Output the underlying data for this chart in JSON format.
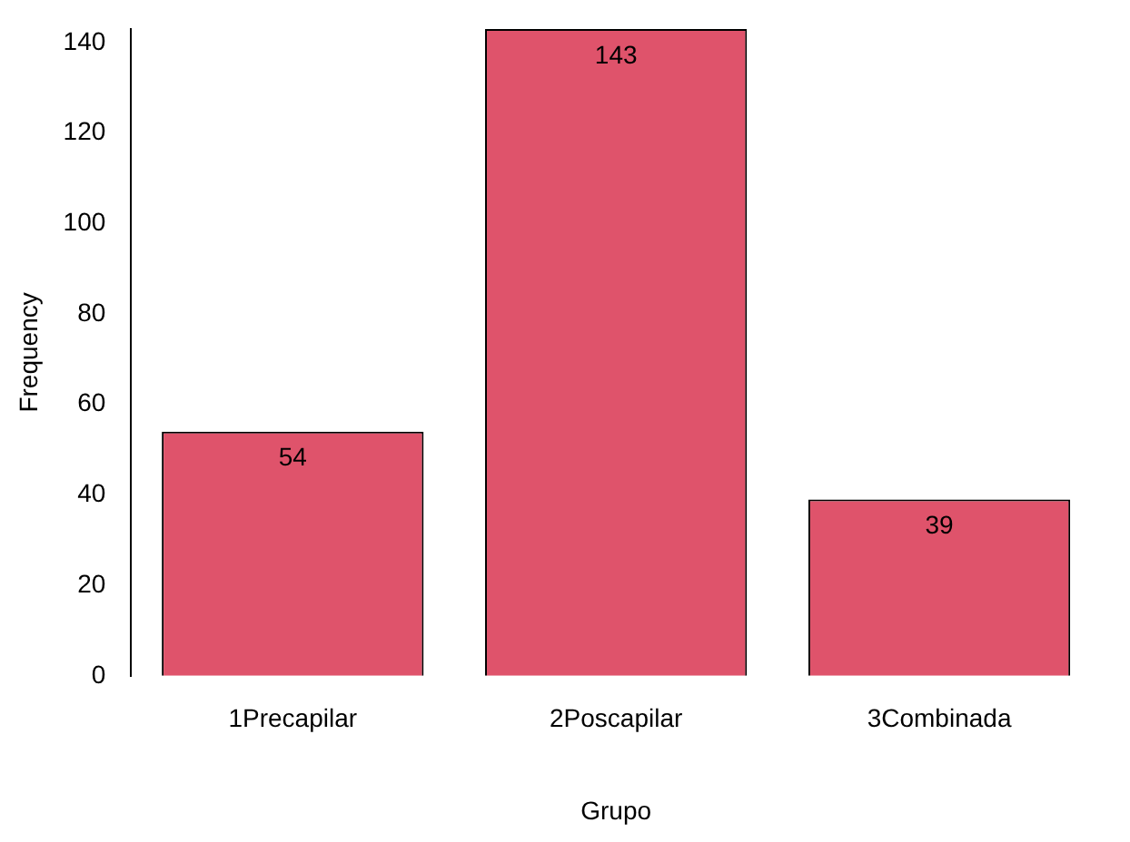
{
  "chart_data": {
    "type": "bar",
    "xlabel": "Grupo",
    "ylabel": "Frequency",
    "categories": [
      "1Precapilar",
      "2Poscapilar",
      "3Combinada"
    ],
    "values": [
      54,
      143,
      39
    ],
    "color": "#df536b",
    "ylim": [
      0,
      143
    ],
    "yticks": [
      0,
      20,
      40,
      60,
      80,
      100,
      120,
      140
    ],
    "grid": false,
    "legend": false,
    "data_labels": true
  }
}
